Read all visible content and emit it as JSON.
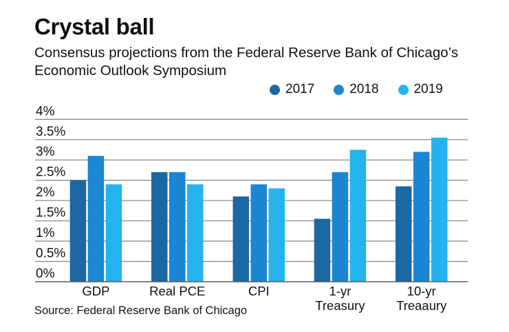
{
  "chart_data": {
    "type": "bar",
    "title": "Crystal ball",
    "subtitle": "Consensus projections from the Federal Reserve Bank of Chicago’s Economic Outlook Symposium",
    "source": "Source: Federal Reserve Bank of Chicago",
    "categories": [
      [
        "GDP"
      ],
      [
        "Real PCE"
      ],
      [
        "CPI"
      ],
      [
        "1-yr",
        "Treasury"
      ],
      [
        "10-yr",
        "Treaaury"
      ]
    ],
    "series": [
      {
        "name": "2017",
        "color": "#1b68a3",
        "values": [
          2.5,
          2.7,
          2.1,
          1.55,
          2.35
        ]
      },
      {
        "name": "2018",
        "color": "#1b86d2",
        "values": [
          3.1,
          2.7,
          2.4,
          2.7,
          3.2
        ]
      },
      {
        "name": "2019",
        "color": "#25b3ef",
        "values": [
          2.4,
          2.4,
          2.3,
          3.25,
          3.55
        ]
      }
    ],
    "yticks": [
      "0%",
      "0.5%",
      "1%",
      "1.5%",
      "2%",
      "2.5%",
      "3%",
      "3.5%",
      "4%"
    ],
    "ylim": [
      0,
      4
    ],
    "grid": true,
    "legend": "top-right"
  }
}
